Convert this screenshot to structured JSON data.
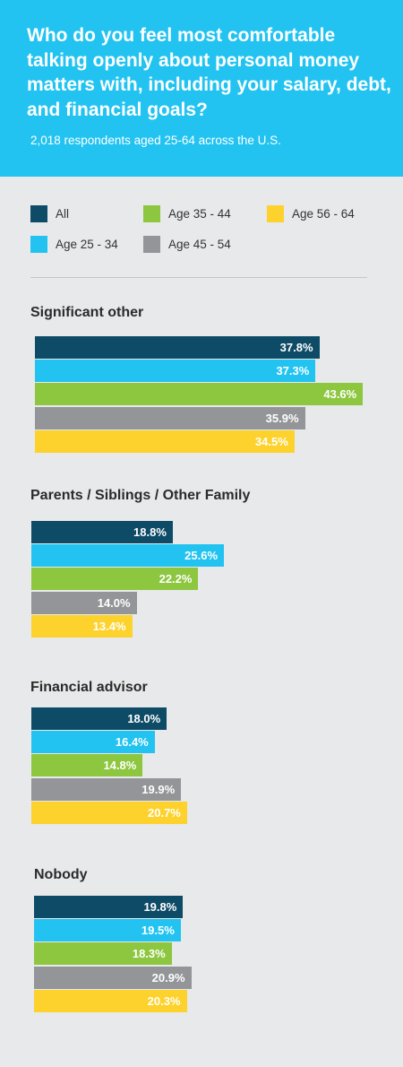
{
  "header": {
    "title": "Who do you feel most comfortable talking openly about personal money matters with, including your salary, debt, and financial goals?",
    "subtitle": "2,018 respondents aged 25-64 across the U.S."
  },
  "chart_data": {
    "type": "bar",
    "orientation": "horizontal",
    "title": "Who do you feel most comfortable talking openly about personal money matters with, including your salary, debt, and financial goals?",
    "subtitle": "2,018 respondents aged 25-64 across the U.S.",
    "categories": [
      "Significant other",
      "Parents / Siblings / Other Family",
      "Financial advisor",
      "Nobody"
    ],
    "series": [
      {
        "name": "All",
        "color": "#0d4b66",
        "values": [
          37.8,
          18.8,
          18.0,
          19.8
        ],
        "labels": [
          "37.8%",
          "18.8%",
          "18.0%",
          "19.8%"
        ]
      },
      {
        "name": "Age 25 - 34",
        "color": "#22c3f1",
        "values": [
          37.3,
          25.6,
          16.4,
          19.5
        ],
        "labels": [
          "37.3%",
          "25.6%",
          "16.4%",
          "19.5%"
        ]
      },
      {
        "name": "Age 35 - 44",
        "color": "#8dc63f",
        "values": [
          43.6,
          22.2,
          14.8,
          18.3
        ],
        "labels": [
          "43.6%",
          "22.2%",
          "14.8%",
          "18.3%"
        ]
      },
      {
        "name": "Age 45 - 54",
        "color": "#939598",
        "values": [
          35.9,
          14.0,
          19.9,
          20.9
        ],
        "labels": [
          "35.9%",
          "14.0%",
          "19.9%",
          "20.9%"
        ]
      },
      {
        "name": "Age 56 - 64",
        "color": "#fdd22c",
        "values": [
          34.5,
          13.4,
          20.7,
          20.3
        ],
        "labels": [
          "34.5%",
          "13.4%",
          "20.7%",
          "20.3%"
        ]
      }
    ],
    "legend_position": "top",
    "grid": false,
    "xlim": [
      0,
      100
    ]
  }
}
